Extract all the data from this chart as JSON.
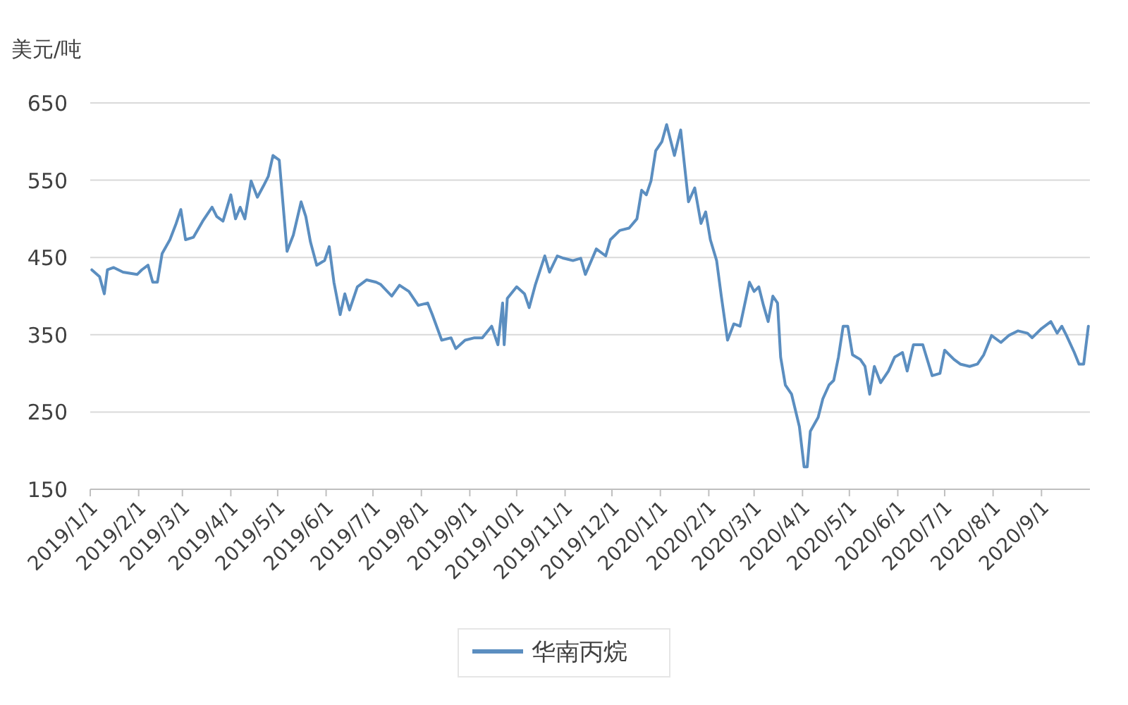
{
  "chart_data": {
    "type": "line",
    "ylabel": "美元/吨",
    "ylim": [
      150,
      650
    ],
    "yticks": [
      150,
      250,
      350,
      450,
      550,
      650
    ],
    "grid": "y",
    "legend": "bottom",
    "marker": "none",
    "line_style": "solid",
    "xlim": [
      "2019-01-01",
      "2020-10-02"
    ],
    "xticks": [
      {
        "value": "2019-01-01",
        "label": "2019/1/1"
      },
      {
        "value": "2019-02-01",
        "label": "2019/2/1"
      },
      {
        "value": "2019-03-01",
        "label": "2019/3/1"
      },
      {
        "value": "2019-04-01",
        "label": "2019/4/1"
      },
      {
        "value": "2019-05-01",
        "label": "2019/5/1"
      },
      {
        "value": "2019-06-01",
        "label": "2019/6/1"
      },
      {
        "value": "2019-07-01",
        "label": "2019/7/1"
      },
      {
        "value": "2019-08-01",
        "label": "2019/8/1"
      },
      {
        "value": "2019-09-01",
        "label": "2019/9/1"
      },
      {
        "value": "2019-10-01",
        "label": "2019/10/1"
      },
      {
        "value": "2019-11-01",
        "label": "2019/11/1"
      },
      {
        "value": "2019-12-01",
        "label": "2019/12/1"
      },
      {
        "value": "2020-01-01",
        "label": "2020/1/1"
      },
      {
        "value": "2020-02-01",
        "label": "2020/2/1"
      },
      {
        "value": "2020-03-01",
        "label": "2020/3/1"
      },
      {
        "value": "2020-04-01",
        "label": "2020/4/1"
      },
      {
        "value": "2020-05-01",
        "label": "2020/5/1"
      },
      {
        "value": "2020-06-01",
        "label": "2020/6/1"
      },
      {
        "value": "2020-07-01",
        "label": "2020/7/1"
      },
      {
        "value": "2020-08-01",
        "label": "2020/8/1"
      },
      {
        "value": "2020-09-01",
        "label": "2020/9/1"
      }
    ],
    "x": [
      "2019-01-02",
      "2019-01-07",
      "2019-01-10",
      "2019-01-12",
      "2019-01-16",
      "2019-01-22",
      "2019-01-31",
      "2019-02-03",
      "2019-02-07",
      "2019-02-10",
      "2019-02-13",
      "2019-02-16",
      "2019-02-21",
      "2019-02-25",
      "2019-02-28",
      "2019-03-03",
      "2019-03-08",
      "2019-03-14",
      "2019-03-20",
      "2019-03-23",
      "2019-03-27",
      "2019-04-01",
      "2019-04-04",
      "2019-04-07",
      "2019-04-10",
      "2019-04-14",
      "2019-04-18",
      "2019-04-22",
      "2019-04-25",
      "2019-04-28",
      "2019-05-02",
      "2019-05-07",
      "2019-05-11",
      "2019-05-16",
      "2019-05-19",
      "2019-05-22",
      "2019-05-26",
      "2019-05-31",
      "2019-06-03",
      "2019-06-06",
      "2019-06-10",
      "2019-06-13",
      "2019-06-16",
      "2019-06-21",
      "2019-06-27",
      "2019-07-03",
      "2019-07-06",
      "2019-07-13",
      "2019-07-18",
      "2019-07-24",
      "2019-07-30",
      "2019-08-05",
      "2019-08-08",
      "2019-08-14",
      "2019-08-20",
      "2019-08-23",
      "2019-08-29",
      "2019-09-04",
      "2019-09-09",
      "2019-09-15",
      "2019-09-19",
      "2019-09-22",
      "2019-09-23",
      "2019-09-25",
      "2019-10-01",
      "2019-10-06",
      "2019-10-09",
      "2019-10-13",
      "2019-10-19",
      "2019-10-22",
      "2019-10-27",
      "2019-10-31",
      "2019-11-06",
      "2019-11-11",
      "2019-11-14",
      "2019-11-21",
      "2019-11-27",
      "2019-11-30",
      "2019-12-06",
      "2019-12-12",
      "2019-12-17",
      "2019-12-20",
      "2019-12-23",
      "2019-12-26",
      "2019-12-29",
      "2020-01-02",
      "2020-01-05",
      "2020-01-10",
      "2020-01-14",
      "2020-01-19",
      "2020-01-23",
      "2020-01-27",
      "2020-01-30",
      "2020-02-02",
      "2020-02-06",
      "2020-02-09",
      "2020-02-13",
      "2020-02-17",
      "2020-02-21",
      "2020-02-27",
      "2020-03-01",
      "2020-03-04",
      "2020-03-07",
      "2020-03-10",
      "2020-03-13",
      "2020-03-16",
      "2020-03-18",
      "2020-03-21",
      "2020-03-25",
      "2020-03-30",
      "2020-04-02",
      "2020-04-04",
      "2020-04-06",
      "2020-04-11",
      "2020-04-14",
      "2020-04-18",
      "2020-04-21",
      "2020-04-24",
      "2020-04-27",
      "2020-04-30",
      "2020-05-03",
      "2020-05-08",
      "2020-05-11",
      "2020-05-14",
      "2020-05-17",
      "2020-05-21",
      "2020-05-26",
      "2020-05-30",
      "2020-06-04",
      "2020-06-07",
      "2020-06-11",
      "2020-06-17",
      "2020-06-23",
      "2020-06-28",
      "2020-07-01",
      "2020-07-07",
      "2020-07-11",
      "2020-07-17",
      "2020-07-22",
      "2020-07-26",
      "2020-07-31",
      "2020-08-06",
      "2020-08-11",
      "2020-08-17",
      "2020-08-23",
      "2020-08-26",
      "2020-09-01",
      "2020-09-07",
      "2020-09-11",
      "2020-09-14",
      "2020-09-17",
      "2020-09-22",
      "2020-09-25",
      "2020-09-28",
      "2020-10-01"
    ],
    "series": [
      {
        "name": "华南丙烷",
        "color": "#5b8ec0",
        "values": [
          434,
          425,
          403,
          434,
          437,
          431,
          428,
          434,
          440,
          418,
          418,
          455,
          473,
          494,
          512,
          473,
          476,
          497,
          515,
          503,
          497,
          531,
          500,
          515,
          500,
          549,
          528,
          543,
          555,
          582,
          576,
          458,
          479,
          522,
          503,
          470,
          440,
          446,
          464,
          418,
          376,
          403,
          382,
          412,
          421,
          418,
          415,
          400,
          414,
          406,
          388,
          391,
          376,
          343,
          346,
          332,
          343,
          346,
          346,
          361,
          337,
          391,
          337,
          397,
          412,
          403,
          385,
          415,
          452,
          431,
          452,
          449,
          446,
          449,
          428,
          461,
          452,
          473,
          485,
          488,
          500,
          537,
          531,
          549,
          588,
          600,
          622,
          582,
          615,
          522,
          540,
          494,
          509,
          473,
          446,
          400,
          343,
          364,
          361,
          418,
          406,
          412,
          388,
          367,
          400,
          391,
          321,
          285,
          273,
          231,
          179,
          179,
          225,
          243,
          267,
          285,
          291,
          321,
          361,
          361,
          324,
          318,
          309,
          273,
          309,
          288,
          303,
          321,
          327,
          303,
          337,
          337,
          297,
          300,
          330,
          318,
          312,
          309,
          312,
          324,
          349,
          340,
          349,
          355,
          352,
          346,
          358,
          367,
          352,
          361,
          349,
          327,
          312,
          312,
          361
        ]
      }
    ]
  }
}
